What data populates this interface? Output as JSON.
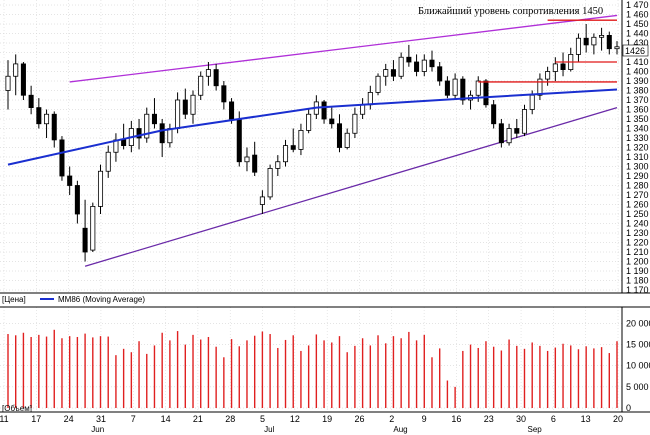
{
  "annotation": "Ближайший уровень сопротивления 1450",
  "price_panel": {
    "legend_price": "[Цена]",
    "legend_ma": "MM86 (Moving Average)",
    "ma_color": "#1a2fd0",
    "channel_upper_color": "#b030d8",
    "channel_lower_color": "#6a2aa8",
    "level_color": "#e01818",
    "y_ticks": [
      "1 470",
      "1 460",
      "1 450",
      "1 440",
      "1 430",
      "1 420",
      "1 410",
      "1 400",
      "1 390",
      "1 380",
      "1 370",
      "1 360",
      "1 350",
      "1 340",
      "1 330",
      "1 320",
      "1 310",
      "1 300",
      "1 290",
      "1 280",
      "1 270",
      "1 260",
      "1 250",
      "1 240",
      "1 230",
      "1 220",
      "1 210",
      "1 200",
      "1 190",
      "1 180",
      "1 170"
    ],
    "last_price_label": "1426"
  },
  "volume_panel": {
    "legend": "[Объем]",
    "bar_color": "#e02020",
    "y_ticks": [
      "20 000",
      "15 000",
      "10 000",
      "5 000",
      "0"
    ]
  },
  "x_axis": {
    "day_labels": [
      "11",
      "17",
      "24",
      "31",
      "7",
      "14",
      "21",
      "28",
      "5",
      "12",
      "19",
      "26",
      "2",
      "9",
      "16",
      "23",
      "30",
      "6",
      "13",
      "20"
    ],
    "month_labels": [
      "Jun",
      "Jul",
      "Aug",
      "Sep"
    ]
  },
  "chart_data": [
    {
      "type": "candlestick",
      "title": "",
      "ylim": [
        1170,
        1470
      ],
      "grid": true,
      "ohlc": [
        [
          1380,
          1412,
          1360,
          1395
        ],
        [
          1395,
          1418,
          1375,
          1408
        ],
        [
          1408,
          1410,
          1370,
          1375
        ],
        [
          1375,
          1385,
          1355,
          1362
        ],
        [
          1362,
          1372,
          1340,
          1345
        ],
        [
          1345,
          1360,
          1330,
          1355
        ],
        [
          1355,
          1358,
          1320,
          1328
        ],
        [
          1328,
          1332,
          1285,
          1290
        ],
        [
          1290,
          1300,
          1270,
          1280
        ],
        [
          1280,
          1285,
          1240,
          1250
        ],
        [
          1235,
          1265,
          1200,
          1210
        ],
        [
          1212,
          1262,
          1210,
          1258
        ],
        [
          1258,
          1302,
          1250,
          1295
        ],
        [
          1295,
          1322,
          1288,
          1315
        ],
        [
          1315,
          1335,
          1305,
          1328
        ],
        [
          1328,
          1345,
          1318,
          1322
        ],
        [
          1322,
          1348,
          1315,
          1340
        ],
        [
          1340,
          1350,
          1318,
          1330
        ],
        [
          1330,
          1362,
          1325,
          1355
        ],
        [
          1355,
          1372,
          1340,
          1345
        ],
        [
          1345,
          1350,
          1310,
          1325
        ],
        [
          1325,
          1345,
          1320,
          1340
        ],
        [
          1340,
          1378,
          1335,
          1370
        ],
        [
          1370,
          1382,
          1350,
          1355
        ],
        [
          1355,
          1380,
          1345,
          1375
        ],
        [
          1375,
          1400,
          1370,
          1395
        ],
        [
          1395,
          1410,
          1385,
          1402
        ],
        [
          1402,
          1408,
          1380,
          1385
        ],
        [
          1385,
          1390,
          1360,
          1368
        ],
        [
          1368,
          1372,
          1345,
          1350
        ],
        [
          1350,
          1358,
          1300,
          1305
        ],
        [
          1305,
          1320,
          1295,
          1310
        ],
        [
          1312,
          1326,
          1290,
          1294
        ],
        [
          1260,
          1275,
          1250,
          1268
        ],
        [
          1268,
          1302,
          1265,
          1298
        ],
        [
          1298,
          1312,
          1290,
          1305
        ],
        [
          1305,
          1328,
          1300,
          1322
        ],
        [
          1322,
          1340,
          1315,
          1318
        ],
        [
          1318,
          1345,
          1312,
          1338
        ],
        [
          1338,
          1360,
          1335,
          1355
        ],
        [
          1355,
          1375,
          1350,
          1368
        ],
        [
          1368,
          1370,
          1345,
          1350
        ],
        [
          1350,
          1362,
          1340,
          1345
        ],
        [
          1345,
          1355,
          1315,
          1320
        ],
        [
          1320,
          1340,
          1318,
          1335
        ],
        [
          1335,
          1362,
          1330,
          1355
        ],
        [
          1355,
          1372,
          1350,
          1365
        ],
        [
          1365,
          1385,
          1360,
          1378
        ],
        [
          1378,
          1398,
          1375,
          1395
        ],
        [
          1395,
          1408,
          1385,
          1402
        ],
        [
          1402,
          1412,
          1390,
          1395
        ],
        [
          1395,
          1420,
          1392,
          1415
        ],
        [
          1415,
          1428,
          1405,
          1410
        ],
        [
          1410,
          1418,
          1395,
          1400
        ],
        [
          1400,
          1418,
          1395,
          1412
        ],
        [
          1412,
          1422,
          1400,
          1405
        ],
        [
          1405,
          1410,
          1385,
          1390
        ],
        [
          1390,
          1395,
          1372,
          1375
        ],
        [
          1375,
          1398,
          1370,
          1392
        ],
        [
          1392,
          1395,
          1365,
          1370
        ],
        [
          1370,
          1380,
          1360,
          1375
        ],
        [
          1375,
          1395,
          1368,
          1390
        ],
        [
          1390,
          1392,
          1362,
          1365
        ],
        [
          1365,
          1370,
          1340,
          1345
        ],
        [
          1345,
          1350,
          1320,
          1325
        ],
        [
          1325,
          1345,
          1322,
          1340
        ],
        [
          1340,
          1350,
          1330,
          1335
        ],
        [
          1335,
          1365,
          1332,
          1360
        ],
        [
          1360,
          1380,
          1355,
          1375
        ],
        [
          1375,
          1398,
          1370,
          1392
        ],
        [
          1392,
          1405,
          1385,
          1400
        ],
        [
          1400,
          1415,
          1390,
          1408
        ],
        [
          1408,
          1420,
          1395,
          1402
        ],
        [
          1402,
          1425,
          1400,
          1418
        ],
        [
          1418,
          1440,
          1410,
          1435
        ],
        [
          1435,
          1450,
          1420,
          1428
        ],
        [
          1428,
          1440,
          1418,
          1436
        ],
        [
          1436,
          1446,
          1422,
          1438
        ],
        [
          1438,
          1442,
          1418,
          1424
        ],
        [
          1424,
          1432,
          1418,
          1426
        ]
      ],
      "moving_average": {
        "name": "MM86 (Moving Average)",
        "x": [
          0,
          20,
          40,
          60,
          79
        ],
        "y": [
          1302,
          1338,
          1362,
          1372,
          1381
        ]
      },
      "trend_lines": {
        "upper_channel": {
          "x": [
            8,
            79
          ],
          "y": [
            1389,
            1459
          ]
        },
        "lower_channel": {
          "x": [
            10,
            79
          ],
          "y": [
            1195,
            1362
          ]
        }
      },
      "resistance_levels": [
        {
          "x": [
            70,
            79
          ],
          "y": [
            1454,
            1454
          ]
        },
        {
          "x": [
            71,
            79
          ],
          "y": [
            1410,
            1410
          ]
        },
        {
          "x": [
            61,
            79
          ],
          "y": [
            1389,
            1389
          ]
        }
      ]
    },
    {
      "type": "bar",
      "title": "",
      "ylim": [
        0,
        22000
      ],
      "grid": true,
      "values": [
        17500,
        17200,
        17800,
        16800,
        17300,
        16900,
        18500,
        16500,
        17000,
        16800,
        17600,
        16700,
        17000,
        16900,
        12500,
        14000,
        13200,
        15800,
        12800,
        14800,
        17800,
        16000,
        18200,
        15000,
        17300,
        16200,
        16800,
        14500,
        12000,
        16300,
        14600,
        16000,
        17100,
        18100,
        17500,
        14200,
        16100,
        17200,
        13500,
        14800,
        17400,
        16000,
        15500,
        17000,
        13200,
        14700,
        16500,
        14800,
        17200,
        15300,
        17000,
        16500,
        18000,
        16000,
        17300,
        12000,
        14100,
        6500,
        5000,
        13500,
        15000,
        14200,
        15800,
        14500,
        13600,
        16200,
        14700,
        14000,
        15500,
        14700,
        13500,
        14300,
        15200,
        14800,
        13900,
        14600,
        14100,
        14400,
        13000,
        15800
      ]
    }
  ]
}
